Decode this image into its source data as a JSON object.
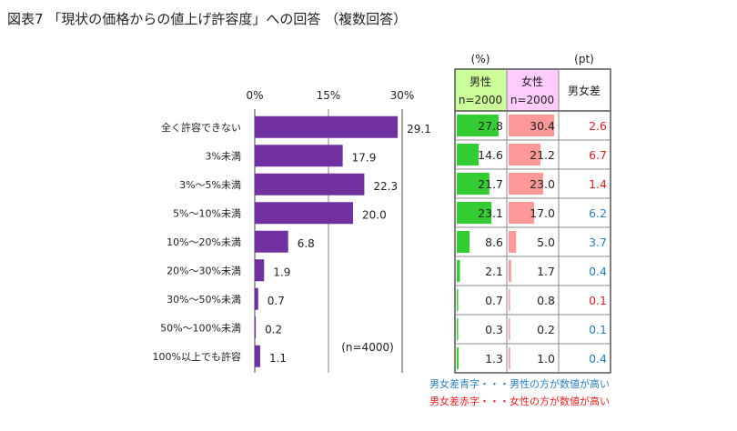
{
  "title": "図表7 「現状の価格からの値上げ許容度」への回答 （複数回答）",
  "chart_data": {
    "type": "bar",
    "orientation": "horizontal",
    "categories": [
      "全く許容できない",
      "3%未満",
      "3%～5%未満",
      "5%～10%未満",
      "10%～20%未満",
      "20%～30%未満",
      "30%～50%未満",
      "50%～100%未満",
      "100%以上でも許容"
    ],
    "values": [
      29.1,
      17.9,
      22.3,
      20.0,
      6.8,
      1.9,
      0.7,
      0.2,
      1.1
    ],
    "value_labels": [
      "29.1",
      "17.9",
      "22.3",
      "20.0",
      "6.8",
      "1.9",
      "0.7",
      "0.2",
      "1.1"
    ],
    "xlim": [
      0,
      30
    ],
    "xticks": [
      "0%",
      "15%",
      "30%"
    ],
    "xtick_values": [
      0,
      15,
      30
    ],
    "grid": true,
    "n_label": "(n=4000)",
    "bar_color": "#7030a0"
  },
  "table": {
    "unit_left": "(%)",
    "unit_right": "(pt)",
    "male_header": "男性",
    "male_n": "n=2000",
    "female_header": "女性",
    "female_n": "n=2000",
    "diff_header": "男女差",
    "male_values": [
      27.8,
      14.6,
      21.7,
      23.1,
      8.6,
      2.1,
      0.7,
      0.3,
      1.3
    ],
    "male_labels": [
      "27.8",
      "14.6",
      "21.7",
      "23.1",
      "8.6",
      "2.1",
      "0.7",
      "0.3",
      "1.3"
    ],
    "female_values": [
      30.4,
      21.2,
      23.0,
      17.0,
      5.0,
      1.7,
      0.8,
      0.2,
      1.0
    ],
    "female_labels": [
      "30.4",
      "21.2",
      "23.0",
      "17.0",
      "5.0",
      "1.7",
      "0.8",
      "0.2",
      "1.0"
    ],
    "diff_labels": [
      "2.6",
      "6.7",
      "1.4",
      "6.2",
      "3.7",
      "0.4",
      "0.1",
      "0.1",
      "0.4"
    ],
    "diff_colors": [
      "#e02020",
      "#e02020",
      "#e02020",
      "#2a7fc0",
      "#2a7fc0",
      "#2a7fc0",
      "#e02020",
      "#2a7fc0",
      "#2a7fc0"
    ],
    "male_bar_color": "#33cc33",
    "female_bar_color": "#ff9999",
    "male_header_bg": "#ccff99",
    "female_header_bg": "#ffccff"
  },
  "legend": {
    "blue_text": "男女差青字・・・男性の方が数値が高い",
    "red_text": "男女差赤字・・・女性の方が数値が高い"
  }
}
